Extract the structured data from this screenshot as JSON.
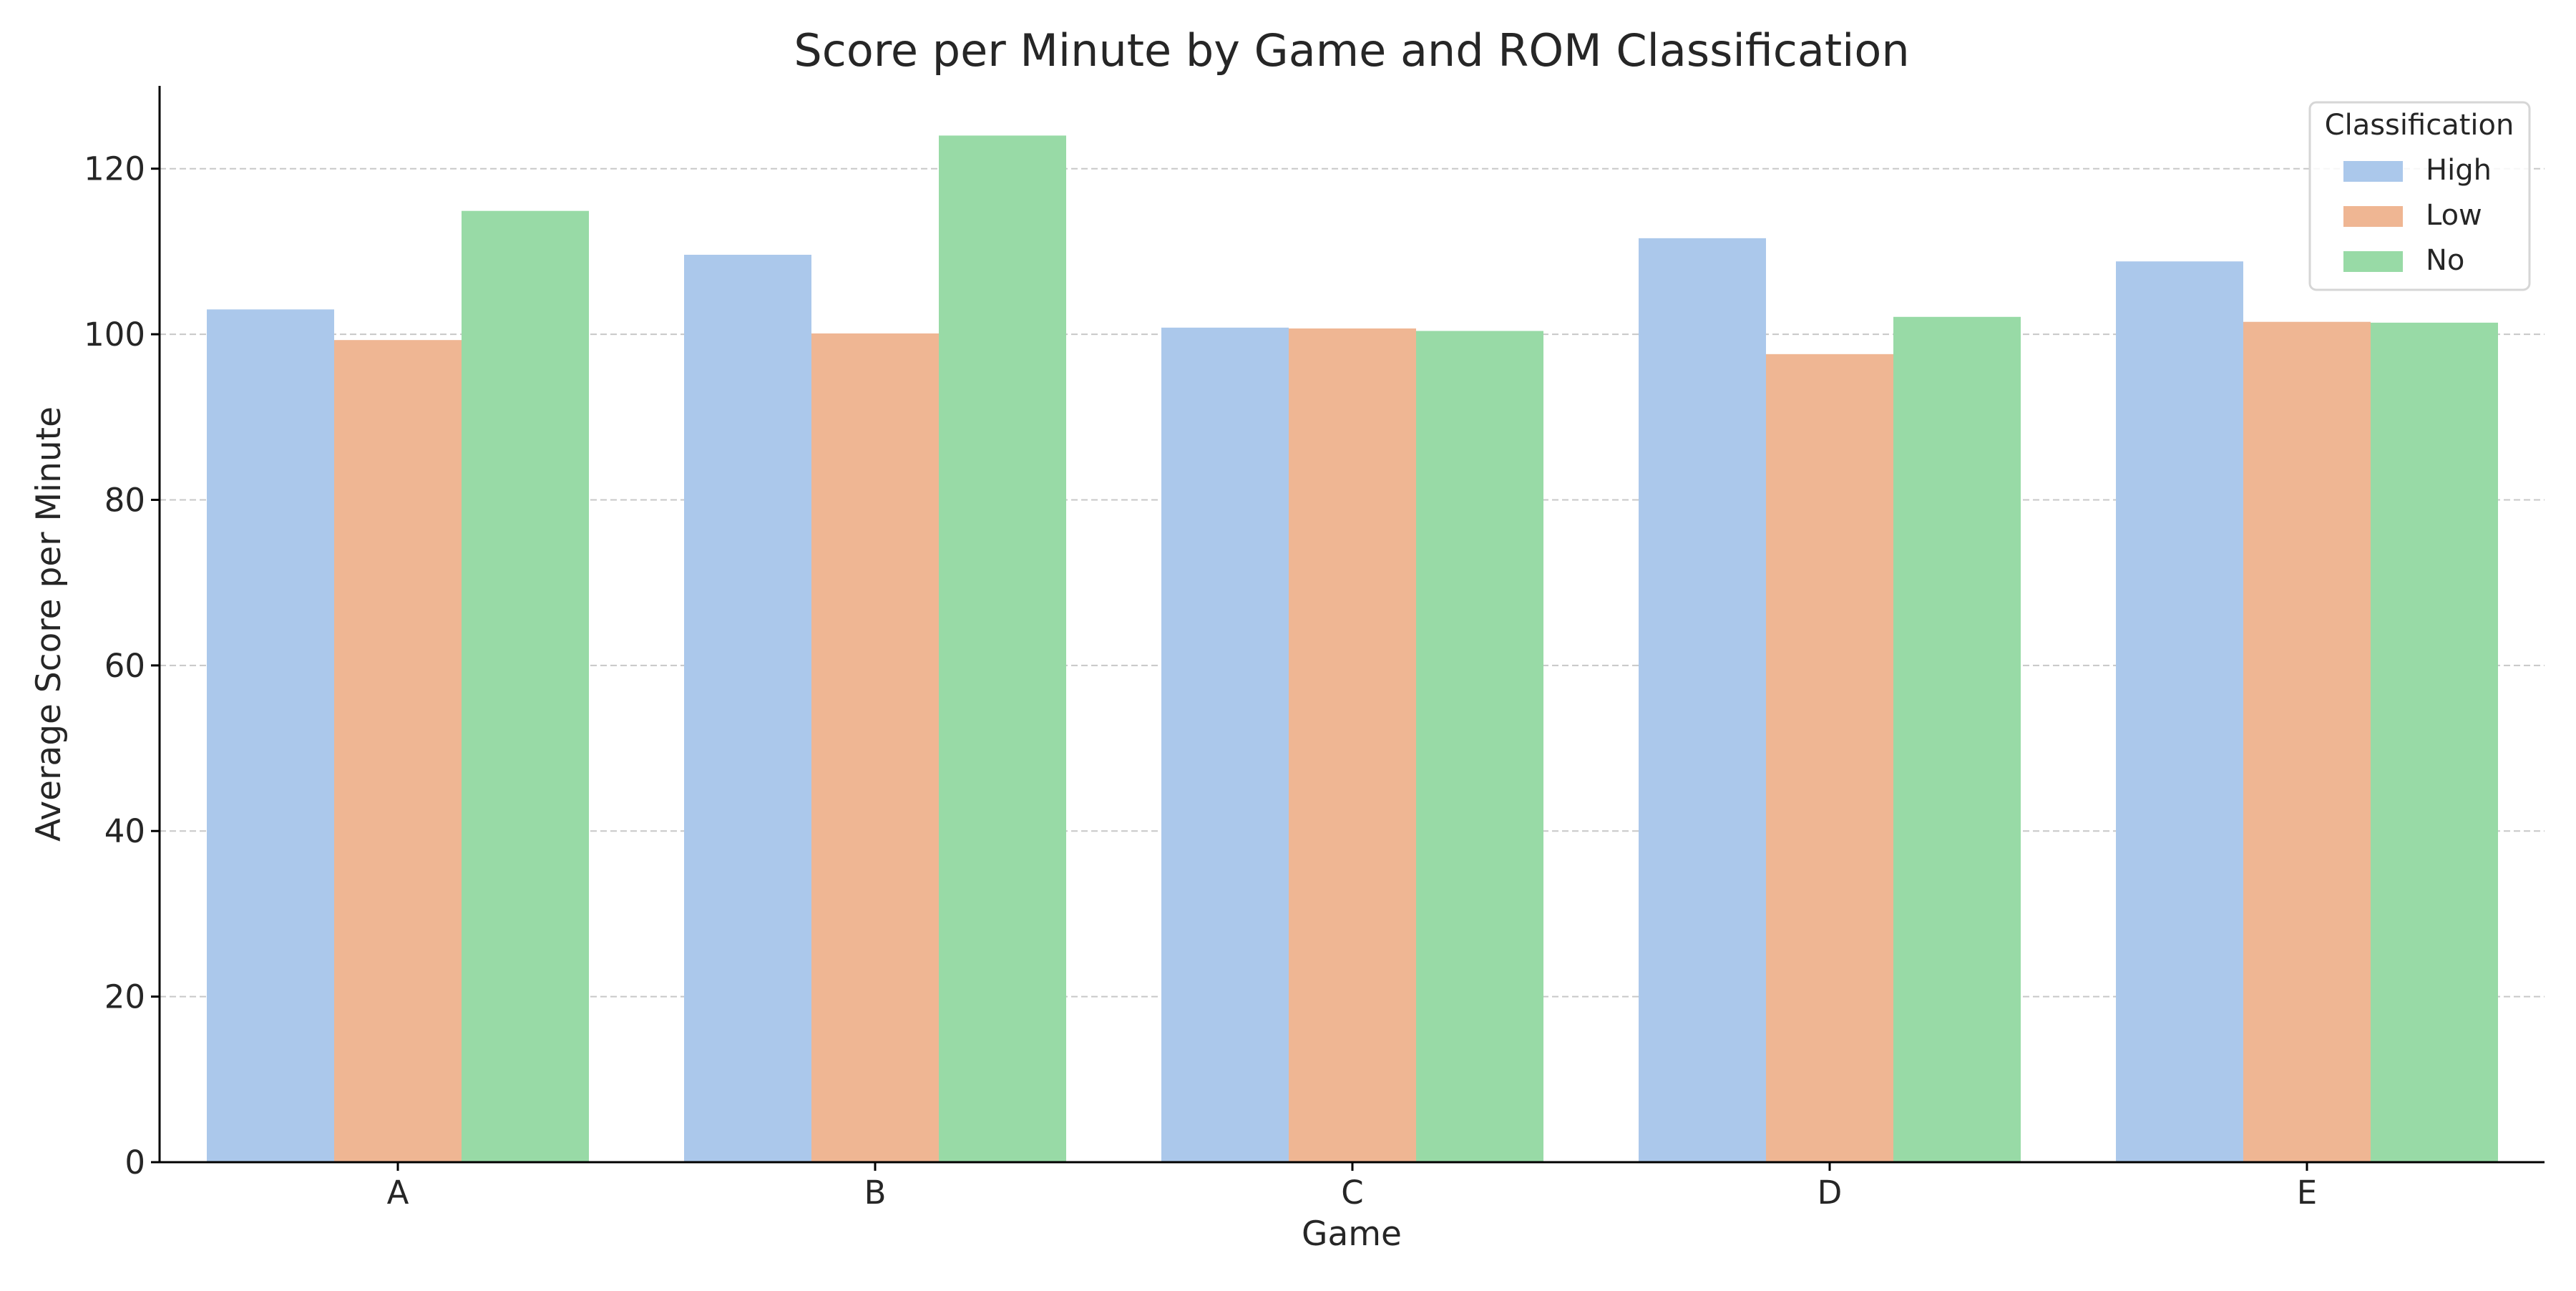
{
  "chart_data": {
    "type": "bar",
    "title": "Score per Minute by Game and ROM Classification",
    "xlabel": "Game",
    "ylabel": "Average Score per Minute",
    "categories": [
      "A",
      "B",
      "C",
      "D",
      "E"
    ],
    "series": [
      {
        "name": "High",
        "values": [
          103.0,
          109.6,
          100.8,
          111.6,
          108.8
        ],
        "color": "#abc8eb"
      },
      {
        "name": "Low",
        "values": [
          99.3,
          100.1,
          100.7,
          97.6,
          101.5
        ],
        "color": "#efb693"
      },
      {
        "name": "No",
        "values": [
          114.9,
          124.0,
          100.4,
          102.1,
          101.4
        ],
        "color": "#98daa6"
      }
    ],
    "ylim": [
      0,
      130
    ],
    "yticks": [
      "0",
      "20",
      "40",
      "60",
      "80",
      "100",
      "120"
    ],
    "ytick_values": [
      0,
      20,
      40,
      60,
      80,
      100,
      120
    ],
    "grid": "y dashed",
    "legend": {
      "title": "Classification",
      "placement": "top-right"
    }
  }
}
